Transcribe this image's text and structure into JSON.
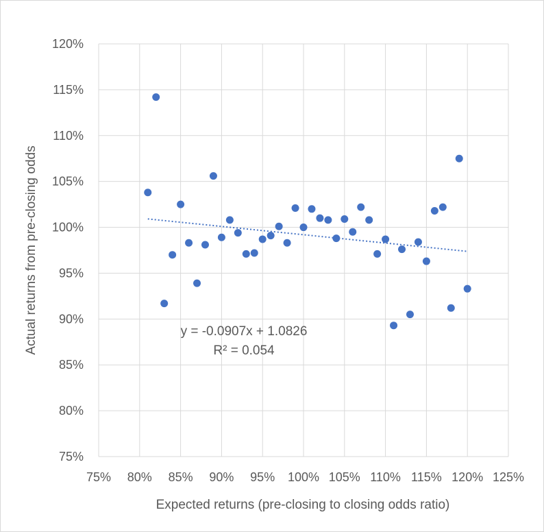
{
  "chart_data": {
    "type": "scatter",
    "xlabel": "Expected returns (pre-closing to closing odds ratio)",
    "ylabel": "Actual returns from pre-closing odds",
    "xlim": [
      0.75,
      1.25
    ],
    "ylim": [
      0.75,
      1.2
    ],
    "x_ticks": [
      0.75,
      0.8,
      0.85,
      0.9,
      0.95,
      1.0,
      1.05,
      1.1,
      1.15,
      1.2,
      1.25
    ],
    "y_ticks": [
      0.75,
      0.8,
      0.85,
      0.9,
      0.95,
      1.0,
      1.05,
      1.1,
      1.15,
      1.2
    ],
    "x_tick_labels": [
      "75%",
      "80%",
      "85%",
      "90%",
      "95%",
      "100%",
      "105%",
      "110%",
      "115%",
      "120%",
      "125%"
    ],
    "y_tick_labels": [
      "75%",
      "80%",
      "85%",
      "90%",
      "95%",
      "100%",
      "105%",
      "110%",
      "115%",
      "120%"
    ],
    "grid": "horizontal and vertical",
    "marker_color": "#4472c4",
    "trendline": {
      "type": "linear",
      "slope": -0.0907,
      "intercept": 1.0826,
      "equation": "y = -0.0907x + 1.0826",
      "r_squared": "R² = 0.054",
      "style": "dotted",
      "color": "#4472c4"
    },
    "points": [
      {
        "x": 0.81,
        "y": 1.038
      },
      {
        "x": 0.82,
        "y": 1.142
      },
      {
        "x": 0.83,
        "y": 0.917
      },
      {
        "x": 0.84,
        "y": 0.97
      },
      {
        "x": 0.85,
        "y": 1.025
      },
      {
        "x": 0.86,
        "y": 0.983
      },
      {
        "x": 0.87,
        "y": 0.939
      },
      {
        "x": 0.88,
        "y": 0.981
      },
      {
        "x": 0.89,
        "y": 1.056
      },
      {
        "x": 0.9,
        "y": 0.989
      },
      {
        "x": 0.91,
        "y": 1.008
      },
      {
        "x": 0.92,
        "y": 0.994
      },
      {
        "x": 0.93,
        "y": 0.971
      },
      {
        "x": 0.94,
        "y": 0.972
      },
      {
        "x": 0.95,
        "y": 0.987
      },
      {
        "x": 0.96,
        "y": 0.991
      },
      {
        "x": 0.97,
        "y": 1.001
      },
      {
        "x": 0.98,
        "y": 0.983
      },
      {
        "x": 0.99,
        "y": 1.021
      },
      {
        "x": 1.0,
        "y": 1.0
      },
      {
        "x": 1.01,
        "y": 1.02
      },
      {
        "x": 1.02,
        "y": 1.01
      },
      {
        "x": 1.03,
        "y": 1.008
      },
      {
        "x": 1.04,
        "y": 0.988
      },
      {
        "x": 1.05,
        "y": 1.009
      },
      {
        "x": 1.06,
        "y": 0.995
      },
      {
        "x": 1.07,
        "y": 1.022
      },
      {
        "x": 1.08,
        "y": 1.008
      },
      {
        "x": 1.09,
        "y": 0.971
      },
      {
        "x": 1.1,
        "y": 0.987
      },
      {
        "x": 1.11,
        "y": 0.893
      },
      {
        "x": 1.12,
        "y": 0.976
      },
      {
        "x": 1.13,
        "y": 0.905
      },
      {
        "x": 1.14,
        "y": 0.984
      },
      {
        "x": 1.15,
        "y": 0.963
      },
      {
        "x": 1.16,
        "y": 1.018
      },
      {
        "x": 1.17,
        "y": 1.022
      },
      {
        "x": 1.18,
        "y": 0.912
      },
      {
        "x": 1.19,
        "y": 1.075
      },
      {
        "x": 1.2,
        "y": 0.933
      }
    ]
  }
}
